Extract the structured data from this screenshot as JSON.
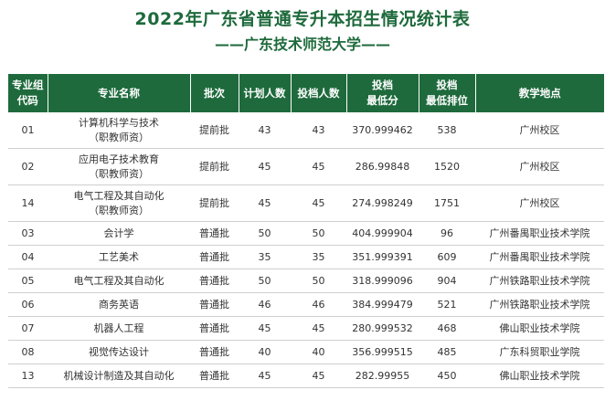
{
  "title": "2022年广东省普通专升本招生情况统计表",
  "subtitle": "——广东技术师范大学——",
  "headers": [
    {
      "l1": "专业组",
      "l2": "代码"
    },
    {
      "l1": "专业名称",
      "l2": ""
    },
    {
      "l1": "批次",
      "l2": ""
    },
    {
      "l1": "计划人数",
      "l2": ""
    },
    {
      "l1": "投档人数",
      "l2": ""
    },
    {
      "l1": "投档",
      "l2": "最低分"
    },
    {
      "l1": "投档",
      "l2": "最低排位"
    },
    {
      "l1": "教学地点",
      "l2": ""
    }
  ],
  "rows": [
    {
      "code": "01",
      "name": "计算机科学与技术",
      "name_sub": "（职教师资）",
      "batch": "提前批",
      "plan": "43",
      "admitted": "43",
      "min_score": "370.999462",
      "min_rank": "538",
      "location": "广州校区"
    },
    {
      "code": "02",
      "name": "应用电子技术教育",
      "name_sub": "（职教师资）",
      "batch": "提前批",
      "plan": "45",
      "admitted": "45",
      "min_score": "286.99848",
      "min_rank": "1520",
      "location": "广州校区"
    },
    {
      "code": "14",
      "name": "电气工程及其自动化",
      "name_sub": "（职教师资）",
      "batch": "提前批",
      "plan": "45",
      "admitted": "45",
      "min_score": "274.998249",
      "min_rank": "1751",
      "location": "广州校区"
    },
    {
      "code": "03",
      "name": "会计学",
      "name_sub": "",
      "batch": "普通批",
      "plan": "50",
      "admitted": "50",
      "min_score": "404.999904",
      "min_rank": "96",
      "location": "广州番禺职业技术学院"
    },
    {
      "code": "04",
      "name": "工艺美术",
      "name_sub": "",
      "batch": "普通批",
      "plan": "35",
      "admitted": "35",
      "min_score": "351.999391",
      "min_rank": "609",
      "location": "广州番禺职业技术学院"
    },
    {
      "code": "05",
      "name": "电气工程及其自动化",
      "name_sub": "",
      "batch": "普通批",
      "plan": "50",
      "admitted": "50",
      "min_score": "318.999096",
      "min_rank": "904",
      "location": "广州铁路职业技术学院"
    },
    {
      "code": "06",
      "name": "商务英语",
      "name_sub": "",
      "batch": "普通批",
      "plan": "46",
      "admitted": "46",
      "min_score": "384.999479",
      "min_rank": "521",
      "location": "广州铁路职业技术学院"
    },
    {
      "code": "07",
      "name": "机器人工程",
      "name_sub": "",
      "batch": "普通批",
      "plan": "45",
      "admitted": "45",
      "min_score": "280.999532",
      "min_rank": "468",
      "location": "佛山职业技术学院"
    },
    {
      "code": "08",
      "name": "视觉传达设计",
      "name_sub": "",
      "batch": "普通批",
      "plan": "40",
      "admitted": "40",
      "min_score": "356.999515",
      "min_rank": "485",
      "location": "广东科贸职业学院"
    },
    {
      "code": "13",
      "name": "机械设计制造及其自动化",
      "name_sub": "",
      "batch": "普通批",
      "plan": "45",
      "admitted": "45",
      "min_score": "282.99955",
      "min_rank": "450",
      "location": "佛山职业技术学院"
    }
  ]
}
